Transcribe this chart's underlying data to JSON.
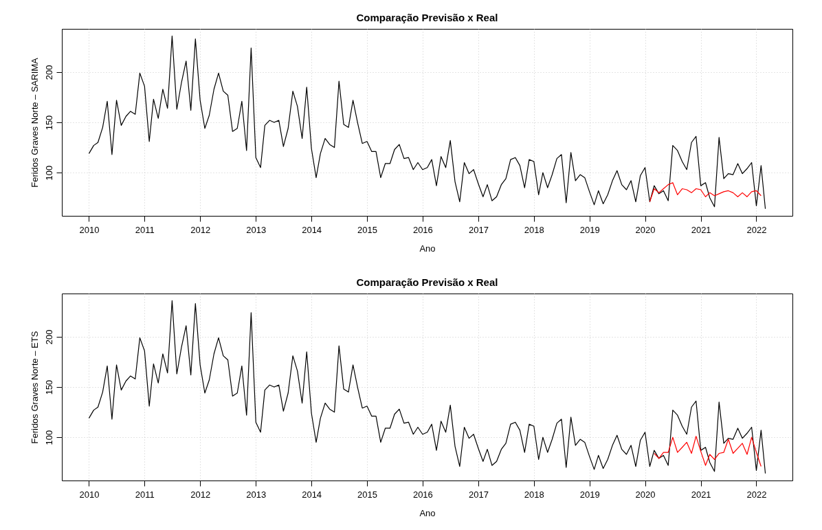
{
  "chart_data": [
    {
      "type": "line",
      "title": "Comparação Previsão x Real",
      "xlabel": "Ano",
      "ylabel": "Feridos Graves Norte – SARIMA",
      "x": [
        "2010-01",
        "2010-02",
        "2010-03",
        "2010-04",
        "2010-05",
        "2010-06",
        "2010-07",
        "2010-08",
        "2010-09",
        "2010-10",
        "2010-11",
        "2010-12",
        "2011-01",
        "2011-02",
        "2011-03",
        "2011-04",
        "2011-05",
        "2011-06",
        "2011-07",
        "2011-08",
        "2011-09",
        "2011-10",
        "2011-11",
        "2011-12",
        "2012-01",
        "2012-02",
        "2012-03",
        "2012-04",
        "2012-05",
        "2012-06",
        "2012-07",
        "2012-08",
        "2012-09",
        "2012-10",
        "2012-11",
        "2012-12",
        "2013-01",
        "2013-02",
        "2013-03",
        "2013-04",
        "2013-05",
        "2013-06",
        "2013-07",
        "2013-08",
        "2013-09",
        "2013-10",
        "2013-11",
        "2013-12",
        "2014-01",
        "2014-02",
        "2014-03",
        "2014-04",
        "2014-05",
        "2014-06",
        "2014-07",
        "2014-08",
        "2014-09",
        "2014-10",
        "2014-11",
        "2014-12",
        "2015-01",
        "2015-02",
        "2015-03",
        "2015-04",
        "2015-05",
        "2015-06",
        "2015-07",
        "2015-08",
        "2015-09",
        "2015-10",
        "2015-11",
        "2015-12",
        "2016-01",
        "2016-02",
        "2016-03",
        "2016-04",
        "2016-05",
        "2016-06",
        "2016-07",
        "2016-08",
        "2016-09",
        "2016-10",
        "2016-11",
        "2016-12",
        "2017-01",
        "2017-02",
        "2017-03",
        "2017-04",
        "2017-05",
        "2017-06",
        "2017-07",
        "2017-08",
        "2017-09",
        "2017-10",
        "2017-11",
        "2017-12",
        "2018-01",
        "2018-02",
        "2018-03",
        "2018-04",
        "2018-05",
        "2018-06",
        "2018-07",
        "2018-08",
        "2018-09",
        "2018-10",
        "2018-11",
        "2018-12",
        "2019-01",
        "2019-02",
        "2019-03",
        "2019-04",
        "2019-05",
        "2019-06",
        "2019-07",
        "2019-08",
        "2019-09",
        "2019-10",
        "2019-11",
        "2019-12",
        "2020-01",
        "2020-02",
        "2020-03",
        "2020-04",
        "2020-05",
        "2020-06",
        "2020-07",
        "2020-08",
        "2020-09",
        "2020-10",
        "2020-11",
        "2020-12",
        "2021-01",
        "2021-02",
        "2021-03",
        "2021-04",
        "2021-05",
        "2021-06",
        "2021-07",
        "2021-08",
        "2021-09",
        "2021-10",
        "2021-11",
        "2021-12",
        "2022-01",
        "2022-02",
        "2022-03"
      ],
      "series": [
        {
          "color": "#000000",
          "values": [
            119,
            127,
            130,
            145,
            171,
            118,
            172,
            147,
            156,
            161,
            158,
            199,
            186,
            131,
            173,
            154,
            183,
            164,
            236,
            163,
            190,
            211,
            162,
            233,
            172,
            144,
            157,
            183,
            199,
            181,
            177,
            141,
            144,
            171,
            122,
            224,
            115,
            105,
            147,
            152,
            150,
            152,
            126,
            144,
            181,
            166,
            134,
            185,
            124,
            95,
            119,
            134,
            128,
            125,
            191,
            148,
            145,
            172,
            149,
            129,
            131,
            121,
            121,
            95,
            109,
            109,
            123,
            128,
            114,
            115,
            103,
            110,
            103,
            105,
            113,
            87,
            116,
            105,
            132,
            91,
            71,
            110,
            99,
            103,
            89,
            76,
            88,
            72,
            76,
            88,
            94,
            113,
            115,
            107,
            85,
            113,
            111,
            78,
            100,
            85,
            98,
            114,
            118,
            70,
            120,
            92,
            98,
            95,
            81,
            68,
            82,
            69,
            78,
            92,
            102,
            88,
            83,
            92,
            71,
            97,
            105,
            71,
            87,
            79,
            82,
            72,
            127,
            122,
            111,
            103,
            130,
            136,
            87,
            90,
            75,
            66,
            135,
            94,
            99,
            98,
            109,
            99,
            104,
            110,
            67,
            107,
            64
          ]
        },
        {
          "color": "#ff0000",
          "x": [
            "2020-02",
            "2020-03",
            "2020-04",
            "2020-05",
            "2020-06",
            "2020-07",
            "2020-08",
            "2020-09",
            "2020-10",
            "2020-11",
            "2020-12",
            "2021-01",
            "2021-02",
            "2021-03",
            "2021-04",
            "2021-05",
            "2021-06",
            "2021-07",
            "2021-08",
            "2021-09",
            "2021-10",
            "2021-11",
            "2021-12",
            "2022-01",
            "2022-02"
          ],
          "values": [
            71,
            84,
            80,
            84,
            88,
            90,
            78,
            84,
            83,
            80,
            84,
            83,
            76,
            80,
            77,
            79,
            81,
            82,
            80,
            76,
            80,
            76,
            81,
            82,
            77
          ]
        }
      ],
      "xlim": [
        "2009-07-07",
        "2022-08-26"
      ],
      "xticks": [
        "2010",
        "2011",
        "2012",
        "2013",
        "2014",
        "2015",
        "2016",
        "2017",
        "2018",
        "2019",
        "2020",
        "2021",
        "2022"
      ],
      "ylim": [
        57,
        243
      ],
      "yticks": [
        100,
        150,
        200
      ],
      "grid": true,
      "legend": false
    },
    {
      "type": "line",
      "title": "Comparação Previsão x Real",
      "xlabel": "Ano",
      "ylabel": "Feridos Graves Norte – ETS",
      "x": [
        "2010-01",
        "2010-02",
        "2010-03",
        "2010-04",
        "2010-05",
        "2010-06",
        "2010-07",
        "2010-08",
        "2010-09",
        "2010-10",
        "2010-11",
        "2010-12",
        "2011-01",
        "2011-02",
        "2011-03",
        "2011-04",
        "2011-05",
        "2011-06",
        "2011-07",
        "2011-08",
        "2011-09",
        "2011-10",
        "2011-11",
        "2011-12",
        "2012-01",
        "2012-02",
        "2012-03",
        "2012-04",
        "2012-05",
        "2012-06",
        "2012-07",
        "2012-08",
        "2012-09",
        "2012-10",
        "2012-11",
        "2012-12",
        "2013-01",
        "2013-02",
        "2013-03",
        "2013-04",
        "2013-05",
        "2013-06",
        "2013-07",
        "2013-08",
        "2013-09",
        "2013-10",
        "2013-11",
        "2013-12",
        "2014-01",
        "2014-02",
        "2014-03",
        "2014-04",
        "2014-05",
        "2014-06",
        "2014-07",
        "2014-08",
        "2014-09",
        "2014-10",
        "2014-11",
        "2014-12",
        "2015-01",
        "2015-02",
        "2015-03",
        "2015-04",
        "2015-05",
        "2015-06",
        "2015-07",
        "2015-08",
        "2015-09",
        "2015-10",
        "2015-11",
        "2015-12",
        "2016-01",
        "2016-02",
        "2016-03",
        "2016-04",
        "2016-05",
        "2016-06",
        "2016-07",
        "2016-08",
        "2016-09",
        "2016-10",
        "2016-11",
        "2016-12",
        "2017-01",
        "2017-02",
        "2017-03",
        "2017-04",
        "2017-05",
        "2017-06",
        "2017-07",
        "2017-08",
        "2017-09",
        "2017-10",
        "2017-11",
        "2017-12",
        "2018-01",
        "2018-02",
        "2018-03",
        "2018-04",
        "2018-05",
        "2018-06",
        "2018-07",
        "2018-08",
        "2018-09",
        "2018-10",
        "2018-11",
        "2018-12",
        "2019-01",
        "2019-02",
        "2019-03",
        "2019-04",
        "2019-05",
        "2019-06",
        "2019-07",
        "2019-08",
        "2019-09",
        "2019-10",
        "2019-11",
        "2019-12",
        "2020-01",
        "2020-02",
        "2020-03",
        "2020-04",
        "2020-05",
        "2020-06",
        "2020-07",
        "2020-08",
        "2020-09",
        "2020-10",
        "2020-11",
        "2020-12",
        "2021-01",
        "2021-02",
        "2021-03",
        "2021-04",
        "2021-05",
        "2021-06",
        "2021-07",
        "2021-08",
        "2021-09",
        "2021-10",
        "2021-11",
        "2021-12",
        "2022-01",
        "2022-02",
        "2022-03"
      ],
      "series": [
        {
          "color": "#000000",
          "values": [
            119,
            127,
            130,
            145,
            171,
            118,
            172,
            147,
            156,
            161,
            158,
            199,
            186,
            131,
            173,
            154,
            183,
            164,
            236,
            163,
            190,
            211,
            162,
            233,
            172,
            144,
            157,
            183,
            199,
            181,
            177,
            141,
            144,
            171,
            122,
            224,
            115,
            105,
            147,
            152,
            150,
            152,
            126,
            144,
            181,
            166,
            134,
            185,
            124,
            95,
            119,
            134,
            128,
            125,
            191,
            148,
            145,
            172,
            149,
            129,
            131,
            121,
            121,
            95,
            109,
            109,
            123,
            128,
            114,
            115,
            103,
            110,
            103,
            105,
            113,
            87,
            116,
            105,
            132,
            91,
            71,
            110,
            99,
            103,
            89,
            76,
            88,
            72,
            76,
            88,
            94,
            113,
            115,
            107,
            85,
            113,
            111,
            78,
            100,
            85,
            98,
            114,
            118,
            70,
            120,
            92,
            98,
            95,
            81,
            68,
            82,
            69,
            78,
            92,
            102,
            88,
            83,
            92,
            71,
            97,
            105,
            71,
            87,
            79,
            82,
            72,
            127,
            122,
            111,
            103,
            130,
            136,
            87,
            90,
            75,
            66,
            135,
            94,
            99,
            98,
            109,
            99,
            104,
            110,
            67,
            107,
            64
          ]
        },
        {
          "color": "#ff0000",
          "x": [
            "2020-03",
            "2020-04",
            "2020-05",
            "2020-06",
            "2020-07",
            "2020-08",
            "2020-09",
            "2020-10",
            "2020-11",
            "2020-12",
            "2021-01",
            "2021-02",
            "2021-03",
            "2021-04",
            "2021-05",
            "2021-06",
            "2021-07",
            "2021-08",
            "2021-09",
            "2021-10",
            "2021-11",
            "2021-12",
            "2022-01",
            "2022-02"
          ],
          "values": [
            84,
            79,
            85,
            85,
            100,
            85,
            90,
            95,
            84,
            101,
            86,
            72,
            83,
            78,
            84,
            85,
            98,
            84,
            89,
            94,
            83,
            100,
            85,
            71
          ]
        }
      ],
      "xlim": [
        "2009-07-07",
        "2022-08-26"
      ],
      "xticks": [
        "2010",
        "2011",
        "2012",
        "2013",
        "2014",
        "2015",
        "2016",
        "2017",
        "2018",
        "2019",
        "2020",
        "2021",
        "2022"
      ],
      "ylim": [
        57,
        243
      ],
      "yticks": [
        100,
        150,
        200
      ],
      "grid": true,
      "legend": false
    }
  ]
}
